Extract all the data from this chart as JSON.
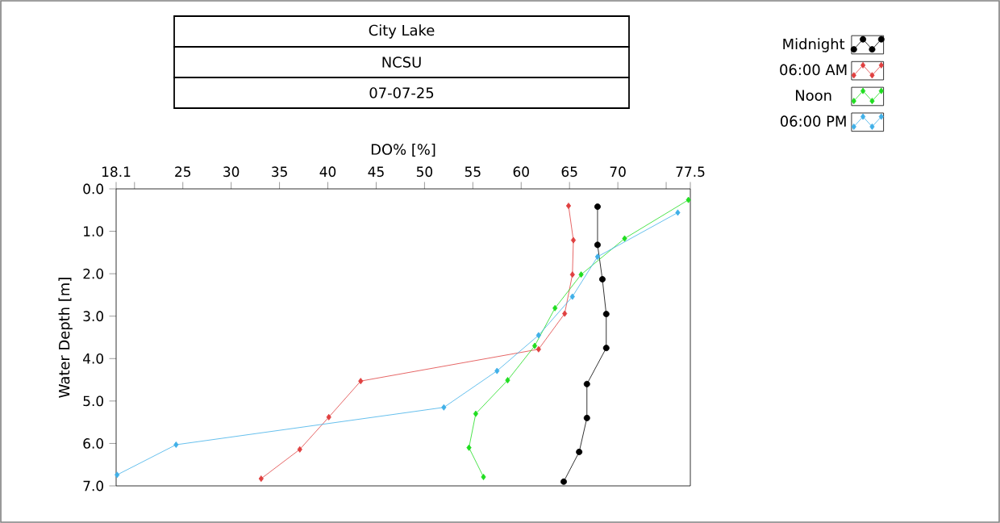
{
  "chart_data": {
    "type": "line",
    "title": "City Lake",
    "subtitle": "NCSU",
    "annotations": [
      "07-07-25"
    ],
    "xlabel": "DO% [%]",
    "ylabel": "Water Depth [m]",
    "xlim": [
      18.1,
      77.5
    ],
    "xticks": [
      18.1,
      {
        "value": 20,
        "label": null
      },
      25,
      30,
      35,
      40,
      45,
      50,
      55,
      60,
      65,
      70,
      {
        "value": 75,
        "label": null
      },
      77.5
    ],
    "ylim": [
      7,
      0
    ],
    "yticks": [
      {
        "value": 0,
        "label": "0.0"
      },
      {
        "value": 1,
        "label": "1.0"
      },
      {
        "value": 2,
        "label": "2.0"
      },
      {
        "value": 3,
        "label": "3.0"
      },
      {
        "value": 4,
        "label": "4.0"
      },
      {
        "value": 5,
        "label": "5.0"
      },
      {
        "value": 6,
        "label": "6.0"
      },
      {
        "value": 7,
        "label": "7.0"
      }
    ],
    "legend": "top right",
    "series": [
      {
        "name": "Midnight",
        "color": "#000000",
        "marker": "circle",
        "x": [
          67.9,
          67.9,
          68.4,
          68.8,
          68.8,
          66.8,
          66.8,
          66.0,
          64.4
        ],
        "values": [
          0.42,
          1.32,
          2.13,
          2.95,
          3.75,
          4.6,
          5.4,
          6.2,
          6.9
        ]
      },
      {
        "name": "06:00 AM",
        "color": "#e04040",
        "marker": "diamond",
        "x": [
          64.9,
          65.4,
          65.3,
          64.5,
          61.8,
          43.4,
          40.1,
          37.1,
          33.1
        ],
        "values": [
          0.4,
          1.21,
          2.02,
          2.94,
          3.78,
          4.53,
          5.38,
          6.14,
          6.83
        ]
      },
      {
        "name": "Noon",
        "color": "#20dd20",
        "marker": "diamond",
        "x": [
          77.3,
          70.7,
          66.2,
          63.5,
          61.4,
          58.6,
          55.3,
          54.6,
          56.1
        ],
        "values": [
          0.26,
          1.17,
          2.02,
          2.81,
          3.7,
          4.51,
          5.3,
          6.1,
          6.79
        ]
      },
      {
        "name": "06:00 PM",
        "color": "#40b0e8",
        "marker": "diamond",
        "x": [
          76.2,
          67.9,
          65.3,
          61.8,
          57.5,
          52.0,
          24.3,
          18.2
        ],
        "values": [
          0.56,
          1.6,
          2.54,
          3.45,
          4.29,
          5.15,
          6.03,
          6.74
        ]
      }
    ]
  }
}
